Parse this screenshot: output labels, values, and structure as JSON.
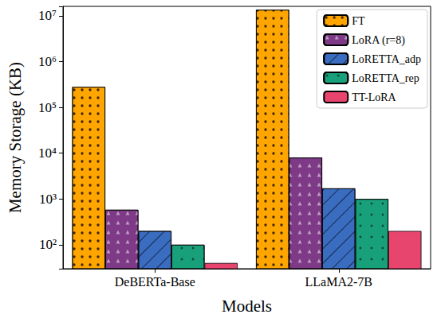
{
  "chart_data": {
    "type": "bar",
    "xlabel": "Models",
    "ylabel": "Memory Storage (KB)",
    "categories": [
      "DeBERTa-Base",
      "LLaMA2-7B"
    ],
    "series": [
      {
        "name": "FT",
        "color": "#FFA500",
        "values": [
          280000,
          13500000
        ]
      },
      {
        "name": "LoRA (r=8)",
        "color": "#7E3A87",
        "values": [
          580,
          8000
        ]
      },
      {
        "name": "LoRETTA_adp",
        "color": "#3A6CC0",
        "values": [
          200,
          1700
        ]
      },
      {
        "name": "LoRETTA_rep",
        "color": "#18A07A",
        "values": [
          100,
          1000
        ]
      },
      {
        "name": "TT-LoRA",
        "color": "#E8456E",
        "values": [
          40,
          200
        ]
      }
    ],
    "ylim": [
      30,
      16000000
    ],
    "yticks": [
      {
        "value": 100,
        "label": "10²"
      },
      {
        "value": 1000,
        "label": "10³"
      },
      {
        "value": 10000,
        "label": "10⁴"
      },
      {
        "value": 100000,
        "label": "10⁵"
      },
      {
        "value": 1000000,
        "label": "10⁶"
      },
      {
        "value": 10000000,
        "label": "10⁷"
      }
    ],
    "log": "y",
    "legend": "upper right",
    "grid": false
  }
}
